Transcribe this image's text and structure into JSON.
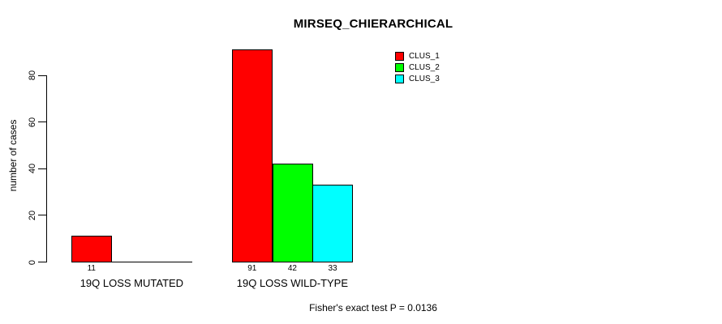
{
  "chart_data": {
    "type": "bar",
    "title": "MIRSEQ_CHIERARCHICAL",
    "ylabel": "number of cases",
    "xlabel": "",
    "ylim": [
      0,
      80
    ],
    "yticks": [
      0,
      20,
      40,
      60,
      80
    ],
    "grid": false,
    "legend_position": "top-right-inside",
    "categories": [
      "19Q LOSS MUTATED",
      "19Q LOSS WILD-TYPE"
    ],
    "series": [
      {
        "name": "CLUS_1",
        "color": "#ff0000",
        "values": [
          11,
          91
        ]
      },
      {
        "name": "CLUS_2",
        "color": "#00ff00",
        "values": [
          0,
          42
        ]
      },
      {
        "name": "CLUS_3",
        "color": "#00ffff",
        "values": [
          0,
          33
        ]
      }
    ],
    "visible_bar_value_labels": [
      "11",
      "91",
      "42",
      "33"
    ],
    "footer": "Fisher's exact test P = 0.0136",
    "axis_color": "#000000",
    "background_color": "#ffffff"
  }
}
